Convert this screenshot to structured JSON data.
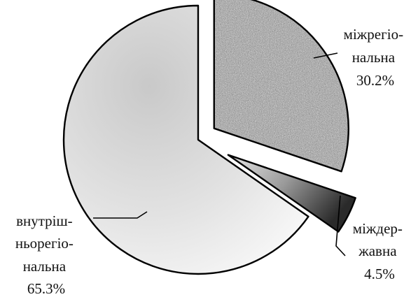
{
  "chart_data": {
    "type": "pie",
    "title": "",
    "slices": [
      {
        "lines": [
          "міжрегіо-",
          "нальна",
          "30.2%"
        ],
        "value": 30.2,
        "pattern": "speckled-gray"
      },
      {
        "lines": [
          "міждер-",
          "жавна",
          "4.5%"
        ],
        "value": 4.5,
        "pattern": "dark-gradient"
      },
      {
        "lines": [
          "внутріш-",
          "ньорегіо-",
          "нальна",
          "65.3%"
        ],
        "value": 65.3,
        "pattern": "light-gradient"
      }
    ],
    "exploded": [
      "міжрегіо-нальна",
      "міждер-жавна"
    ],
    "legend": "none"
  }
}
